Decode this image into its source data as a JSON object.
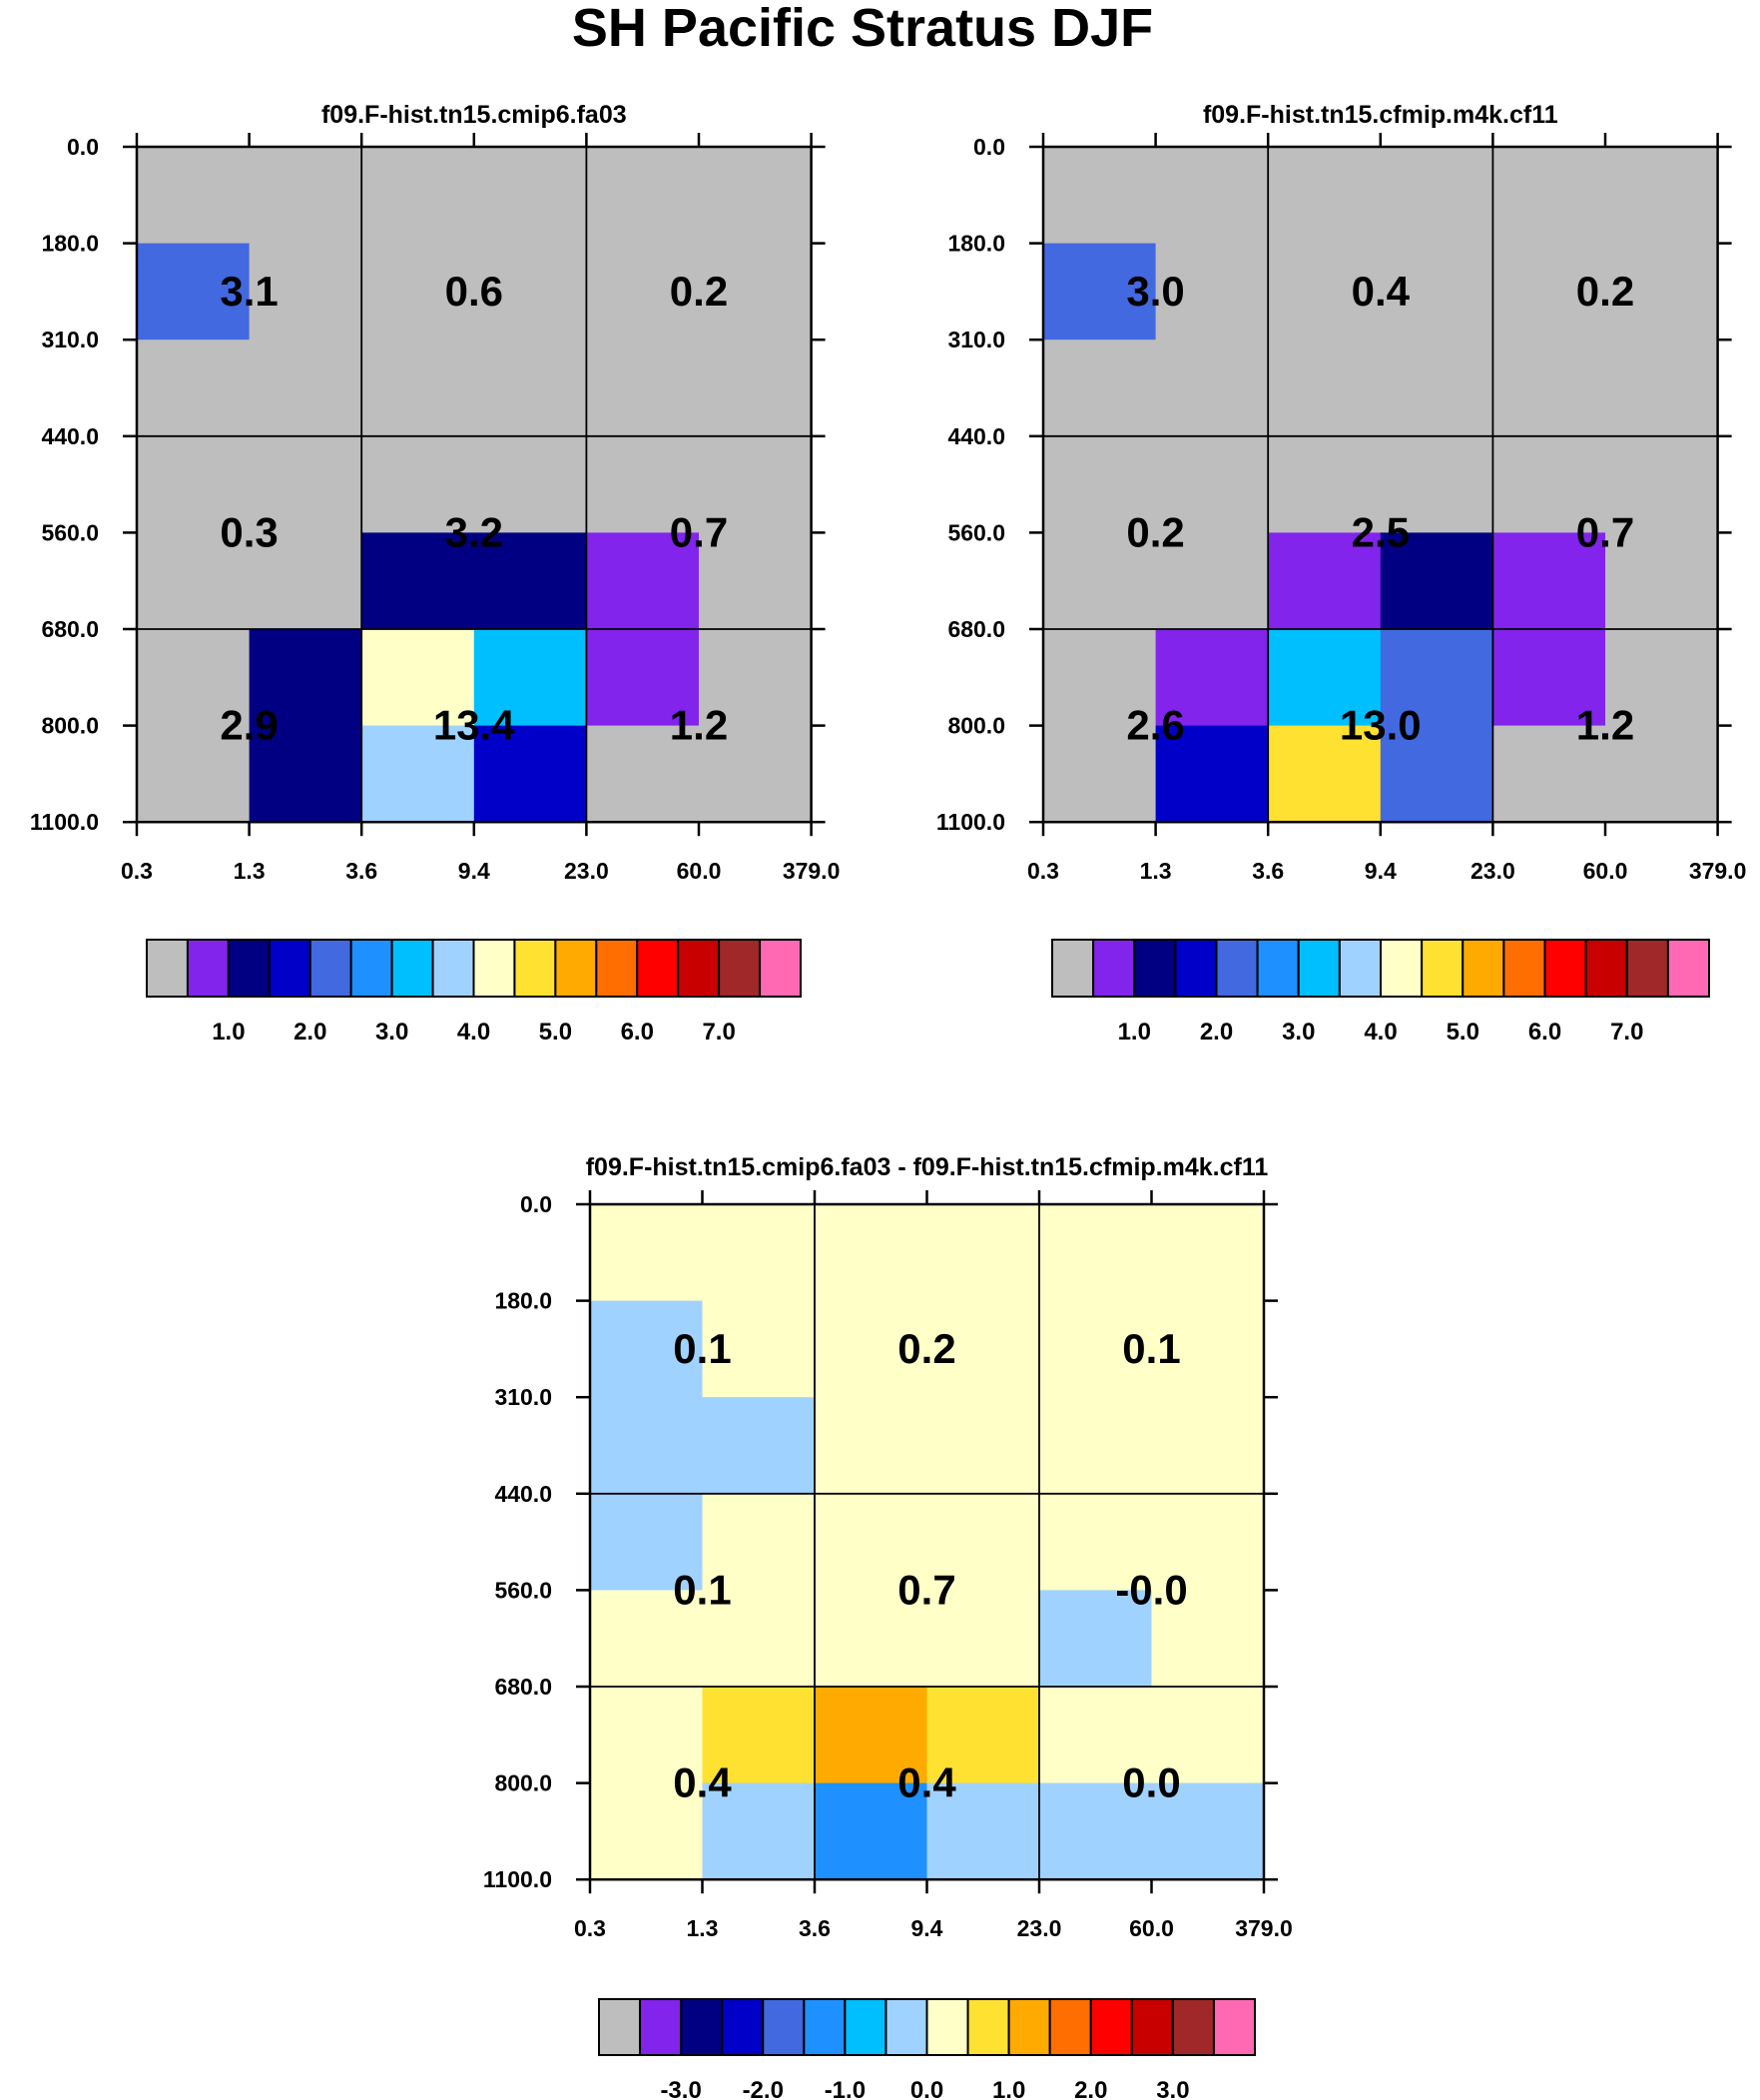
{
  "title": "SH Pacific Stratus DJF",
  "colors": {
    "main_palette": [
      "#bebebe",
      "#8224ec",
      "#010082",
      "#0000c8",
      "#4269e0",
      "#1e90ff",
      "#00bfff",
      "#a0d2ff",
      "#ffffc8",
      "#ffe132",
      "#ffaa00",
      "#ff6e00",
      "#ff0000",
      "#c80000",
      "#a02828",
      "#ff69b4"
    ],
    "diff_palette": [
      "#bebebe",
      "#8224ec",
      "#010082",
      "#0000c8",
      "#4269e0",
      "#1e90ff",
      "#00bfff",
      "#a0d2ff",
      "#ffffc8",
      "#ffe132",
      "#ffaa00",
      "#ff6e00",
      "#ff0000",
      "#c80000",
      "#a02828",
      "#ff69b4"
    ]
  },
  "chart_data": [
    {
      "type": "heatmap",
      "title": "f09.F-hist.tn15.cmip6.fa03",
      "x_edges": [
        "0.3",
        "1.3",
        "3.6",
        "9.4",
        "23.0",
        "60.0",
        "379.0"
      ],
      "y_edges": [
        "0.0",
        "180.0",
        "310.0",
        "440.0",
        "560.0",
        "680.0",
        "800.0",
        "1100.0"
      ],
      "cell_colors": [
        [
          0,
          0,
          0,
          0,
          0,
          0
        ],
        [
          4,
          0,
          0,
          0,
          0,
          0
        ],
        [
          0,
          0,
          0,
          0,
          0,
          0
        ],
        [
          0,
          0,
          0,
          0,
          0,
          0
        ],
        [
          0,
          0,
          2,
          2,
          1,
          0
        ],
        [
          0,
          2,
          8,
          6,
          1,
          0
        ],
        [
          0,
          2,
          7,
          3,
          0,
          0
        ]
      ],
      "box_values": [
        [
          "3.1",
          "0.6",
          "0.2"
        ],
        [
          "0.3",
          "3.2",
          "0.7"
        ],
        [
          "2.9",
          "13.4",
          "1.2"
        ]
      ],
      "colorbar": {
        "palette": "main_palette",
        "labels": [
          "1.0",
          "2.0",
          "3.0",
          "4.0",
          "5.0",
          "6.0",
          "7.0"
        ]
      }
    },
    {
      "type": "heatmap",
      "title": "f09.F-hist.tn15.cfmip.m4k.cf11",
      "x_edges": [
        "0.3",
        "1.3",
        "3.6",
        "9.4",
        "23.0",
        "60.0",
        "379.0"
      ],
      "y_edges": [
        "0.0",
        "180.0",
        "310.0",
        "440.0",
        "560.0",
        "680.0",
        "800.0",
        "1100.0"
      ],
      "cell_colors": [
        [
          0,
          0,
          0,
          0,
          0,
          0
        ],
        [
          4,
          0,
          0,
          0,
          0,
          0
        ],
        [
          0,
          0,
          0,
          0,
          0,
          0
        ],
        [
          0,
          0,
          0,
          0,
          0,
          0
        ],
        [
          0,
          0,
          1,
          2,
          1,
          0
        ],
        [
          0,
          1,
          6,
          4,
          1,
          0
        ],
        [
          0,
          3,
          9,
          4,
          0,
          0
        ]
      ],
      "box_values": [
        [
          "3.0",
          "0.4",
          "0.2"
        ],
        [
          "0.2",
          "2.5",
          "0.7"
        ],
        [
          "2.6",
          "13.0",
          "1.2"
        ]
      ],
      "colorbar": {
        "palette": "main_palette",
        "labels": [
          "1.0",
          "2.0",
          "3.0",
          "4.0",
          "5.0",
          "6.0",
          "7.0"
        ]
      }
    },
    {
      "type": "heatmap",
      "title": "f09.F-hist.tn15.cmip6.fa03 - f09.F-hist.tn15.cfmip.m4k.cf11",
      "x_edges": [
        "0.3",
        "1.3",
        "3.6",
        "9.4",
        "23.0",
        "60.0",
        "379.0"
      ],
      "y_edges": [
        "0.0",
        "180.0",
        "310.0",
        "440.0",
        "560.0",
        "680.0",
        "800.0",
        "1100.0"
      ],
      "cell_colors": [
        [
          8,
          8,
          8,
          8,
          8,
          8
        ],
        [
          7,
          8,
          8,
          8,
          8,
          8
        ],
        [
          7,
          7,
          8,
          8,
          8,
          8
        ],
        [
          7,
          8,
          8,
          8,
          8,
          8
        ],
        [
          8,
          8,
          8,
          8,
          7,
          8
        ],
        [
          8,
          9,
          10,
          9,
          8,
          8
        ],
        [
          8,
          7,
          5,
          7,
          7,
          7
        ]
      ],
      "box_values": [
        [
          "0.1",
          "0.2",
          "0.1"
        ],
        [
          "0.1",
          "0.7",
          "-0.0"
        ],
        [
          "0.4",
          "0.4",
          "0.0"
        ]
      ],
      "colorbar": {
        "palette": "diff_palette",
        "labels": [
          "-3.0",
          "-2.0",
          "-1.0",
          "0.0",
          "1.0",
          "2.0",
          "3.0"
        ]
      }
    }
  ]
}
